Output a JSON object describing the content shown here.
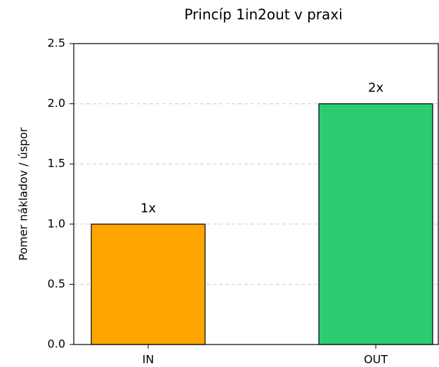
{
  "chart_data": {
    "type": "bar",
    "title": "Princíp 1in2out v praxi",
    "y_label": "Pomer nákladov / úspor",
    "categories": [
      "IN",
      "OUT"
    ],
    "values": [
      1,
      2
    ],
    "value_labels": [
      "1x",
      "2x"
    ],
    "colors": [
      "#ffa500",
      "#2ecc71"
    ],
    "ylim": [
      0,
      2.5
    ],
    "yticks": [
      {
        "value": 0,
        "label": "0.0"
      },
      0.5,
      {
        "value": 1,
        "label": "1.0"
      },
      1.5,
      {
        "value": 2,
        "label": "2.0"
      },
      2.5
    ],
    "grid": true
  }
}
